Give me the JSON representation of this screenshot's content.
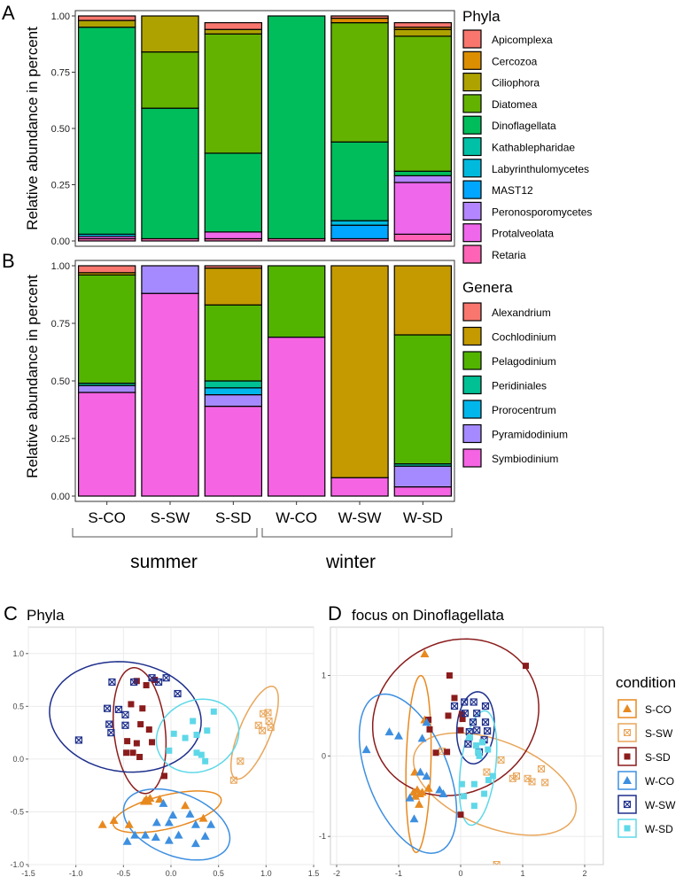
{
  "panels": {
    "A": {
      "letter": "A",
      "ylabel": "Relative abundance in percent",
      "legend_title": "Phyla"
    },
    "B": {
      "letter": "B",
      "ylabel": "Relative abundance in percent",
      "legend_title": "Genera"
    },
    "C": {
      "letter": "C",
      "title": "Phyla"
    },
    "D": {
      "letter": "D",
      "title": "focus on Dinoflagellata"
    }
  },
  "seasons": [
    "summer",
    "winter"
  ],
  "condition_legend_title": "condition",
  "chart_data": [
    {
      "type": "bar",
      "id": "A",
      "stacked": true,
      "categories": [
        "S-CO",
        "S-SW",
        "S-SD",
        "W-CO",
        "W-SW",
        "W-SD"
      ],
      "ylim": [
        0,
        1
      ],
      "yticks": [
        "0.00",
        "0.25",
        "0.50",
        "0.75",
        "1.00"
      ],
      "ylabel": "Relative abundance in percent",
      "legend_title": "Phyla",
      "series": [
        {
          "name": "Apicomplexa",
          "color": "#F8766D",
          "values": [
            0.02,
            0.0,
            0.03,
            0.0,
            0.01,
            0.02
          ]
        },
        {
          "name": "Cercozoa",
          "color": "#DB8E00",
          "values": [
            0.0,
            0.0,
            0.0,
            0.0,
            0.02,
            0.01
          ]
        },
        {
          "name": "Ciliophora",
          "color": "#AEA200",
          "values": [
            0.03,
            0.16,
            0.02,
            0.0,
            0.0,
            0.03
          ]
        },
        {
          "name": "Diatomea",
          "color": "#64B200",
          "values": [
            0.0,
            0.25,
            0.53,
            0.0,
            0.53,
            0.6
          ]
        },
        {
          "name": "Dinoflagellata",
          "color": "#00BD5C",
          "values": [
            0.92,
            0.58,
            0.35,
            0.99,
            0.35,
            0.02
          ]
        },
        {
          "name": "Kathablepharidae",
          "color": "#00C1A7",
          "values": [
            0.0,
            0.0,
            0.0,
            0.0,
            0.0,
            0.0
          ]
        },
        {
          "name": "Labyrinthulomycetes",
          "color": "#00BADE",
          "values": [
            0.01,
            0.0,
            0.0,
            0.0,
            0.02,
            0.0
          ]
        },
        {
          "name": "MAST12",
          "color": "#00A6FF",
          "values": [
            0.0,
            0.0,
            0.0,
            0.0,
            0.06,
            0.0
          ]
        },
        {
          "name": "Peronosporomycetes",
          "color": "#B385FF",
          "values": [
            0.0,
            0.0,
            0.0,
            0.0,
            0.0,
            0.03
          ]
        },
        {
          "name": "Protalveolata",
          "color": "#EF67EB",
          "values": [
            0.01,
            0.0,
            0.03,
            0.0,
            0.0,
            0.23
          ]
        },
        {
          "name": "Retaria",
          "color": "#FF63B6",
          "values": [
            0.01,
            0.01,
            0.01,
            0.01,
            0.01,
            0.03
          ]
        }
      ]
    },
    {
      "type": "bar",
      "id": "B",
      "stacked": true,
      "categories": [
        "S-CO",
        "S-SW",
        "S-SD",
        "W-CO",
        "W-SW",
        "W-SD"
      ],
      "ylim": [
        0,
        1
      ],
      "yticks": [
        "0.00",
        "0.25",
        "0.50",
        "0.75",
        "1.00"
      ],
      "ylabel": "Relative abundance in percent",
      "legend_title": "Genera",
      "series": [
        {
          "name": "Alexandrium",
          "color": "#F8766D",
          "values": [
            0.03,
            0.0,
            0.01,
            0.0,
            0.0,
            0.0
          ]
        },
        {
          "name": "Cochlodinium",
          "color": "#C49A00",
          "values": [
            0.01,
            0.0,
            0.16,
            0.0,
            0.92,
            0.3
          ]
        },
        {
          "name": "Pelagodinium",
          "color": "#53B400",
          "values": [
            0.47,
            0.0,
            0.33,
            0.31,
            0.0,
            0.56
          ]
        },
        {
          "name": "Peridiniales",
          "color": "#00C094",
          "values": [
            0.01,
            0.0,
            0.03,
            0.0,
            0.0,
            0.01
          ]
        },
        {
          "name": "Prorocentrum",
          "color": "#00B6EB",
          "values": [
            0.0,
            0.0,
            0.03,
            0.0,
            0.0,
            0.0
          ]
        },
        {
          "name": "Pyramidodinium",
          "color": "#A58AFF",
          "values": [
            0.03,
            0.12,
            0.05,
            0.0,
            0.0,
            0.09
          ]
        },
        {
          "name": "Symbiodinium",
          "color": "#F564E3",
          "values": [
            0.45,
            0.88,
            0.39,
            0.69,
            0.08,
            0.04
          ]
        }
      ]
    },
    {
      "type": "scatter",
      "id": "C",
      "title": "Phyla",
      "xlim": [
        -1.5,
        1.5
      ],
      "ylim": [
        -1.0,
        1.25
      ],
      "xticks": [
        "-1.5",
        "-1.0",
        "-0.5",
        "0.0",
        "0.5",
        "1.0",
        "1.5"
      ],
      "yticks": [
        "-1.0",
        "-0.5",
        "0.0",
        "0.5",
        "1.0"
      ],
      "series": [
        {
          "name": "S-CO",
          "color": "#E8891F",
          "shape": "triangle",
          "points": [
            [
              -0.26,
              -0.38
            ],
            [
              -0.22,
              -0.37
            ],
            [
              -0.28,
              -0.4
            ],
            [
              -0.24,
              -0.4
            ],
            [
              -0.6,
              -0.58
            ],
            [
              -0.44,
              -0.62
            ],
            [
              -0.12,
              -0.38
            ],
            [
              0.15,
              -0.44
            ],
            [
              0.34,
              -0.56
            ],
            [
              -0.72,
              -0.62
            ]
          ],
          "ellipse": {
            "cx": -0.04,
            "cy": -0.5,
            "rx": 0.58,
            "ry": 0.16,
            "angle": 12
          }
        },
        {
          "name": "S-SW",
          "color": "#E8A65B",
          "shape": "box-cross",
          "points": [
            [
              1.02,
              0.44
            ],
            [
              1.03,
              0.36
            ],
            [
              1.05,
              0.3
            ],
            [
              0.97,
              0.43
            ],
            [
              0.92,
              0.32
            ],
            [
              0.96,
              0.27
            ],
            [
              0.73,
              -0.02
            ],
            [
              0.66,
              -0.2
            ]
          ],
          "ellipse": {
            "cx": 0.88,
            "cy": 0.25,
            "rx": 0.48,
            "ry": 0.16,
            "angle": 65
          }
        },
        {
          "name": "S-SD",
          "color": "#8B1C1C",
          "shape": "square",
          "points": [
            [
              -0.36,
              0.74
            ],
            [
              -0.26,
              0.7
            ],
            [
              -0.17,
              0.75
            ],
            [
              -0.42,
              0.52
            ],
            [
              -0.3,
              0.48
            ],
            [
              -0.32,
              0.33
            ],
            [
              -0.23,
              0.28
            ],
            [
              -0.46,
              0.17
            ],
            [
              -0.36,
              0.15
            ],
            [
              -0.2,
              0.16
            ],
            [
              -0.33,
              0.02
            ],
            [
              -0.47,
              0.06
            ],
            [
              -0.4,
              0.06
            ],
            [
              -0.07,
              -0.16
            ]
          ],
          "ellipse": {
            "cx": -0.33,
            "cy": 0.27,
            "rx": 0.6,
            "ry": 0.27,
            "angle": 97
          }
        },
        {
          "name": "W-CO",
          "color": "#3D8FE0",
          "shape": "triangle",
          "points": [
            [
              -0.08,
              -0.42
            ],
            [
              0.02,
              -0.53
            ],
            [
              0.2,
              -0.52
            ],
            [
              0.26,
              -0.62
            ],
            [
              0.42,
              -0.62
            ],
            [
              -0.46,
              -0.78
            ],
            [
              -0.38,
              -0.72
            ],
            [
              -0.27,
              -0.72
            ],
            [
              -0.16,
              -0.74
            ],
            [
              -0.02,
              -0.77
            ],
            [
              0.08,
              -0.72
            ],
            [
              0.26,
              -0.8
            ],
            [
              0.36,
              -0.73
            ],
            [
              -0.15,
              -0.6
            ],
            [
              -0.02,
              -0.6
            ]
          ],
          "ellipse": {
            "cx": 0.06,
            "cy": -0.62,
            "rx": 0.58,
            "ry": 0.3,
            "angle": -18
          }
        },
        {
          "name": "W-SW",
          "color": "#1E2F8C",
          "shape": "circle-cross",
          "points": [
            [
              -0.62,
              0.73
            ],
            [
              -0.39,
              0.73
            ],
            [
              -0.2,
              0.77
            ],
            [
              -0.67,
              0.48
            ],
            [
              -0.55,
              0.47
            ],
            [
              -0.48,
              0.42
            ],
            [
              -0.65,
              0.33
            ],
            [
              -0.48,
              0.32
            ],
            [
              -0.63,
              0.25
            ],
            [
              -0.97,
              0.18
            ],
            [
              -0.13,
              0.73
            ],
            [
              -0.05,
              0.77
            ],
            [
              0.07,
              0.62
            ]
          ],
          "ellipse": {
            "cx": -0.48,
            "cy": 0.4,
            "rx": 0.8,
            "ry": 0.52,
            "angle": -6
          }
        },
        {
          "name": "W-SD",
          "color": "#5ED8E8",
          "shape": "square",
          "points": [
            [
              0.23,
              0.36
            ],
            [
              0.38,
              0.27
            ],
            [
              0.27,
              0.23
            ],
            [
              0.15,
              0.2
            ],
            [
              0.03,
              0.24
            ],
            [
              0.27,
              0.06
            ],
            [
              0.32,
              0.04
            ],
            [
              0.36,
              -0.02
            ],
            [
              -0.02,
              0.08
            ],
            [
              0.45,
              0.45
            ]
          ],
          "ellipse": {
            "cx": 0.28,
            "cy": 0.22,
            "rx": 0.44,
            "ry": 0.34,
            "angle": 15
          }
        }
      ]
    },
    {
      "type": "scatter",
      "id": "D",
      "title": "focus on Dinoflagellata",
      "xlim": [
        -2.1,
        2.3
      ],
      "ylim": [
        -1.35,
        1.6
      ],
      "xticks": [
        "-2",
        "-1",
        "0",
        "1",
        "2"
      ],
      "yticks": [
        "-1",
        "0",
        "1"
      ],
      "series": [
        {
          "name": "S-CO",
          "color": "#E8891F",
          "shape": "triangle",
          "points": [
            [
              -0.58,
              1.27
            ],
            [
              -0.74,
              -0.2
            ],
            [
              -0.7,
              -0.42
            ],
            [
              -0.66,
              -0.47
            ],
            [
              -0.62,
              -0.45
            ],
            [
              -0.73,
              -0.5
            ],
            [
              -0.67,
              -0.6
            ],
            [
              -0.76,
              -0.45
            ],
            [
              -0.58,
              0.45
            ],
            [
              -0.52,
              -0.4
            ]
          ],
          "ellipse": {
            "cx": -0.68,
            "cy": -0.1,
            "rx": 1.1,
            "ry": 0.2,
            "angle": 88
          }
        },
        {
          "name": "S-SW",
          "color": "#E8A65B",
          "shape": "box-cross",
          "points": [
            [
              0.65,
              -0.05
            ],
            [
              0.84,
              -0.28
            ],
            [
              1.08,
              -0.28
            ],
            [
              1.15,
              -0.32
            ],
            [
              1.3,
              -0.16
            ],
            [
              1.36,
              -0.33
            ],
            [
              0.58,
              -1.35
            ],
            [
              0.42,
              -0.2
            ],
            [
              0.9,
              -0.25
            ],
            [
              -0.3,
              0.06
            ]
          ],
          "ellipse": {
            "cx": 0.55,
            "cy": -0.35,
            "rx": 1.35,
            "ry": 0.55,
            "angle": -15
          }
        },
        {
          "name": "S-SD",
          "color": "#8B1C1C",
          "shape": "square",
          "points": [
            [
              -0.18,
              1.0
            ],
            [
              -0.52,
              0.45
            ],
            [
              -0.1,
              0.72
            ],
            [
              -0.2,
              0.5
            ],
            [
              -0.5,
              0.33
            ],
            [
              0.02,
              0.52
            ],
            [
              0.0,
              0.32
            ],
            [
              0.03,
              0.46
            ],
            [
              1.05,
              1.12
            ],
            [
              0.0,
              -0.73
            ],
            [
              -0.4,
              0.04
            ],
            [
              -0.22,
              0.05
            ]
          ],
          "ellipse": {
            "cx": -0.08,
            "cy": 0.48,
            "rx": 1.35,
            "ry": 0.96,
            "angle": 10
          }
        },
        {
          "name": "W-CO",
          "color": "#3D8FE0",
          "shape": "triangle",
          "points": [
            [
              -1.52,
              0.08
            ],
            [
              -1.15,
              0.3
            ],
            [
              -1.0,
              0.25
            ],
            [
              -0.55,
              0.42
            ],
            [
              -0.62,
              0.22
            ],
            [
              -0.34,
              -0.42
            ],
            [
              -0.28,
              -0.47
            ],
            [
              -0.82,
              -0.52
            ],
            [
              -0.75,
              -0.78
            ],
            [
              -0.55,
              -0.25
            ],
            [
              -0.65,
              -0.2
            ]
          ],
          "ellipse": {
            "cx": -0.85,
            "cy": -0.22,
            "rx": 1.1,
            "ry": 0.62,
            "angle": -58
          }
        },
        {
          "name": "W-SW",
          "color": "#1E2F8C",
          "shape": "circle-cross",
          "points": [
            [
              0.06,
              0.67
            ],
            [
              0.21,
              0.67
            ],
            [
              0.4,
              0.62
            ],
            [
              -0.1,
              0.62
            ],
            [
              0.07,
              0.53
            ],
            [
              0.26,
              0.53
            ],
            [
              0.4,
              0.42
            ],
            [
              0.2,
              0.42
            ],
            [
              0.43,
              0.31
            ],
            [
              0.26,
              0.32
            ],
            [
              0.14,
              0.3
            ],
            [
              0.38,
              0.2
            ],
            [
              0.12,
              0.15
            ],
            [
              0.3,
              0.05
            ]
          ],
          "ellipse": {
            "cx": 0.24,
            "cy": 0.35,
            "rx": 0.45,
            "ry": 0.3,
            "angle": 82
          }
        },
        {
          "name": "W-SD",
          "color": "#5ED8E8",
          "shape": "square",
          "points": [
            [
              0.15,
              0.23
            ],
            [
              0.25,
              0.13
            ],
            [
              0.35,
              0.17
            ],
            [
              0.44,
              0.08
            ],
            [
              0.28,
              0.05
            ],
            [
              0.3,
              0.0
            ],
            [
              0.22,
              -0.35
            ],
            [
              0.45,
              -0.3
            ],
            [
              0.52,
              -0.25
            ],
            [
              0.02,
              -0.35
            ],
            [
              0.38,
              -0.47
            ],
            [
              0.05,
              -0.5
            ],
            [
              0.22,
              -0.62
            ]
          ],
          "ellipse": {
            "cx": 0.28,
            "cy": -0.15,
            "rx": 0.72,
            "ry": 0.28,
            "angle": 80
          }
        }
      ]
    }
  ]
}
